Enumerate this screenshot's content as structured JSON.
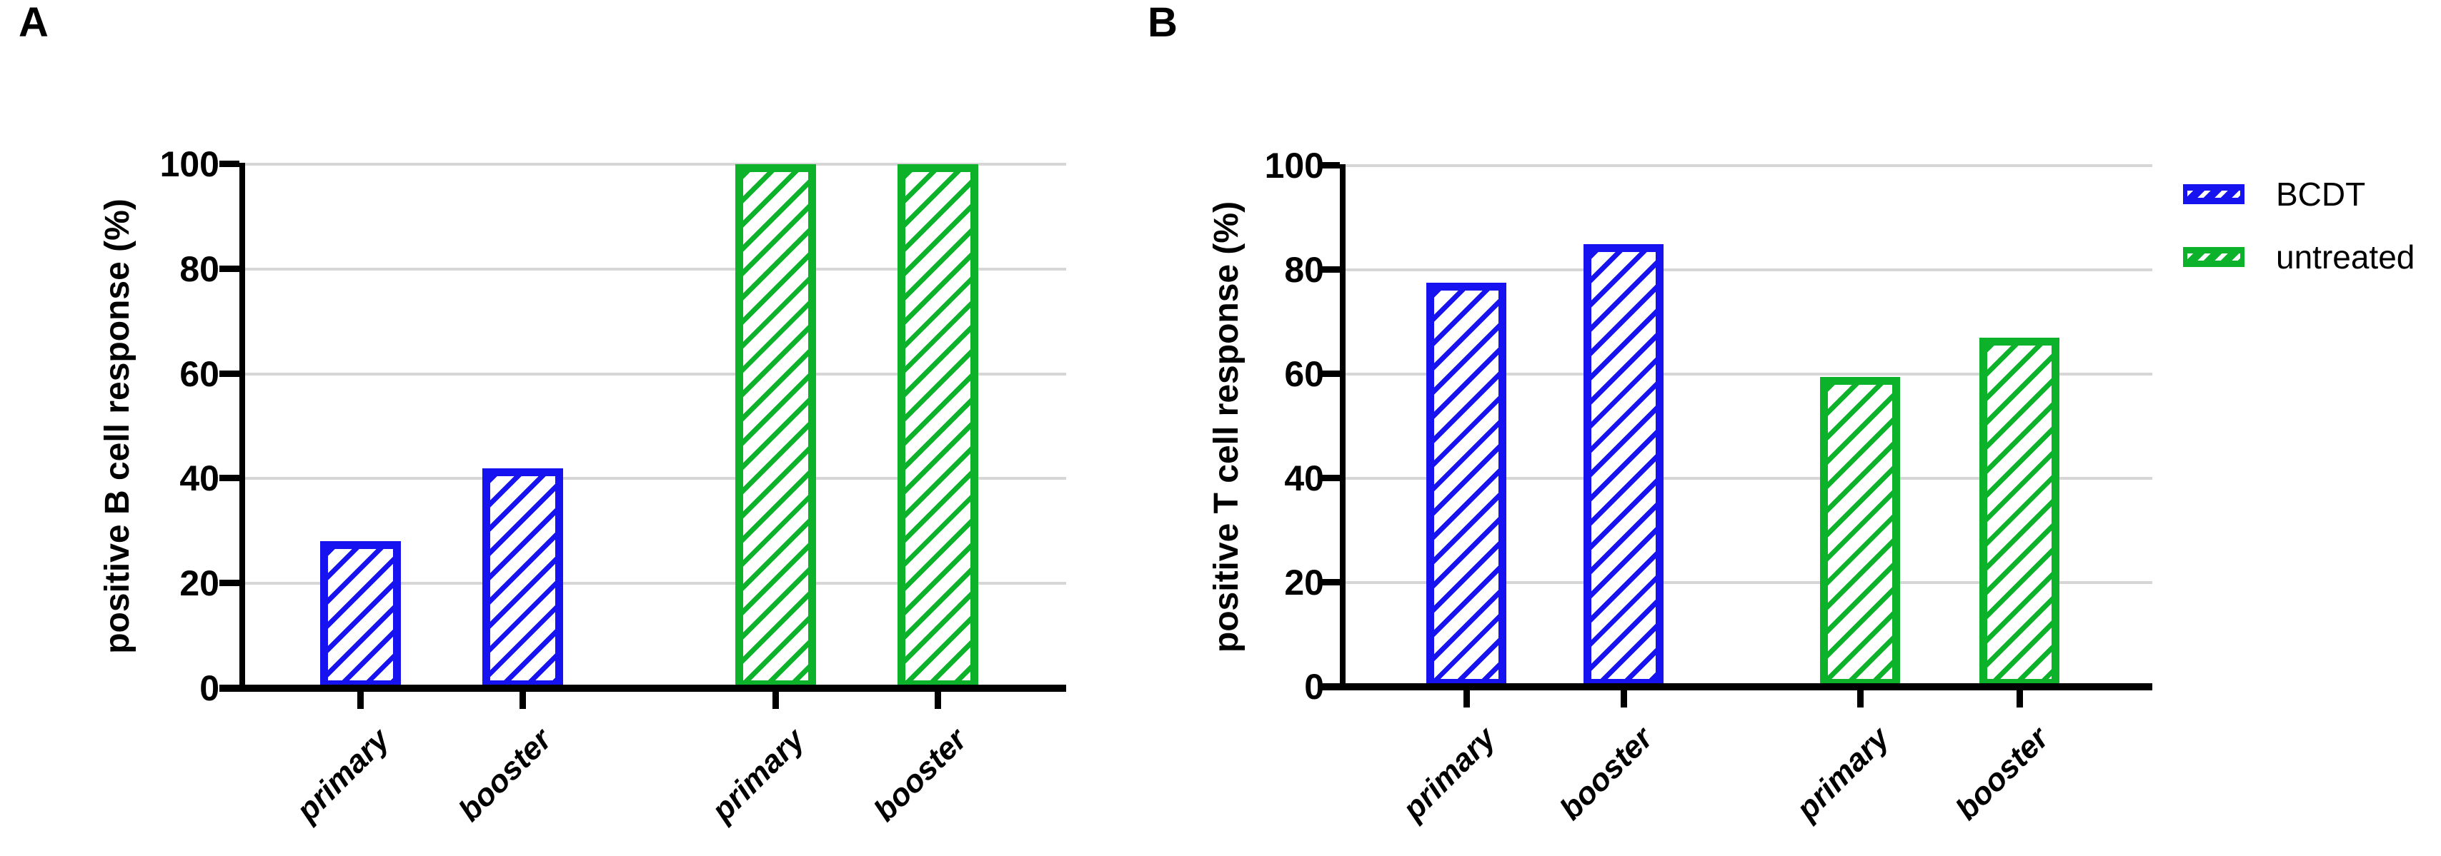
{
  "chart_data": [
    {
      "type": "bar",
      "panel": "A",
      "title": "",
      "ylabel": "positive B cell response (%)",
      "xlabel": "",
      "ylim": [
        0,
        100
      ],
      "yticks": [
        0,
        20,
        40,
        60,
        80,
        100
      ],
      "grid": "horizontal",
      "fill_style": "diagonal-hatched",
      "categories": [
        "primary",
        "booster",
        "primary",
        "booster"
      ],
      "series": [
        {
          "name": "BCDT",
          "color": "#1612F0",
          "bar_indices": [
            0,
            1
          ],
          "values": [
            28,
            42
          ]
        },
        {
          "name": "untreated",
          "color": "#0CB32A",
          "bar_indices": [
            2,
            3
          ],
          "values": [
            100,
            100
          ]
        }
      ]
    },
    {
      "type": "bar",
      "panel": "B",
      "title": "",
      "ylabel": "positive T cell response (%)",
      "xlabel": "",
      "ylim": [
        0,
        100
      ],
      "yticks": [
        0,
        20,
        40,
        60,
        80,
        100
      ],
      "grid": "horizontal",
      "fill_style": "diagonal-hatched",
      "categories": [
        "primary",
        "booster",
        "primary",
        "booster"
      ],
      "series": [
        {
          "name": "BCDT",
          "color": "#1612F0",
          "bar_indices": [
            0,
            1
          ],
          "values": [
            77.5,
            85
          ]
        },
        {
          "name": "untreated",
          "color": "#0CB32A",
          "bar_indices": [
            2,
            3
          ],
          "values": [
            59.5,
            67
          ]
        }
      ]
    }
  ],
  "legend": {
    "position": "right-of-panel-B",
    "items": [
      {
        "label": "BCDT",
        "color": "#1612F0"
      },
      {
        "label": "untreated",
        "color": "#0CB32A"
      }
    ]
  },
  "colors": {
    "gridline": "#d6d6d6",
    "axis": "#000000",
    "background": "#ffffff"
  }
}
